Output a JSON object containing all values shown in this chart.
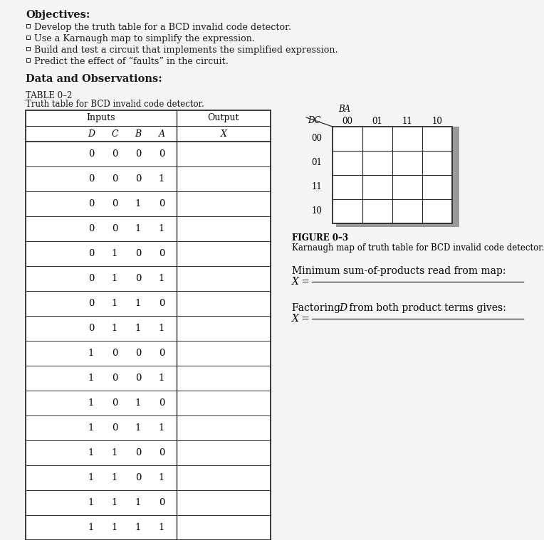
{
  "page_bg": "#f5f5f5",
  "title_objectives": "Objectives:",
  "objectives": [
    "Develop the truth table for a BCD invalid code detector.",
    "Use a Karnaugh map to simplify the expression.",
    "Build and test a circuit that implements the simplified expression.",
    "Predict the effect of “faults” in the circuit."
  ],
  "section_title": "Data and Observations:",
  "table_title_line1": "TABLE 0–2",
  "table_title_line2": "Truth table for BCD invalid code detector.",
  "col_inputs": "Inputs",
  "col_output": "Output",
  "col_headers": [
    "D",
    "C",
    "B",
    "A"
  ],
  "col_output_header": "X",
  "rows": [
    [
      "0",
      "0",
      "0",
      "0"
    ],
    [
      "0",
      "0",
      "0",
      "1"
    ],
    [
      "0",
      "0",
      "1",
      "0"
    ],
    [
      "0",
      "0",
      "1",
      "1"
    ],
    [
      "0",
      "1",
      "0",
      "0"
    ],
    [
      "0",
      "1",
      "0",
      "1"
    ],
    [
      "0",
      "1",
      "1",
      "0"
    ],
    [
      "0",
      "1",
      "1",
      "1"
    ],
    [
      "1",
      "0",
      "0",
      "0"
    ],
    [
      "1",
      "0",
      "0",
      "1"
    ],
    [
      "1",
      "0",
      "1",
      "0"
    ],
    [
      "1",
      "0",
      "1",
      "1"
    ],
    [
      "1",
      "1",
      "0",
      "0"
    ],
    [
      "1",
      "1",
      "0",
      "1"
    ],
    [
      "1",
      "1",
      "1",
      "0"
    ],
    [
      "1",
      "1",
      "1",
      "1"
    ]
  ],
  "kmap_ba_label": "BA",
  "kmap_dc_label": "DC",
  "kmap_col_headers": [
    "00",
    "01",
    "11",
    "10"
  ],
  "kmap_row_headers": [
    "00",
    "01",
    "11",
    "10"
  ],
  "figure_label": "FIGURE 0–3",
  "figure_caption": "Karnaugh map of truth table for BCD invalid code detector.",
  "min_sop_text": "Minimum sum-of-products read from map:",
  "x_eq1": "X =",
  "factoring_text": "Factoring D from both product terms gives:",
  "x_eq2": "X ="
}
